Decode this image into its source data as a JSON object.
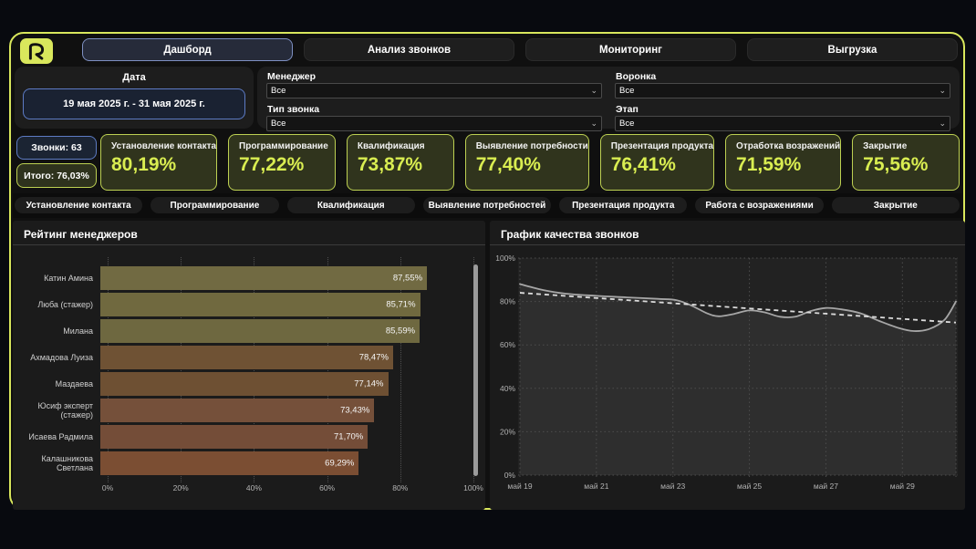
{
  "header": {
    "logo_icon": "r-monogram-icon",
    "tabs": [
      {
        "label": "Дашборд",
        "active": true
      },
      {
        "label": "Анализ звонков",
        "active": false
      },
      {
        "label": "Мониторинг",
        "active": false
      },
      {
        "label": "Выгрузка",
        "active": false
      }
    ]
  },
  "filters": {
    "date": {
      "label": "Дата",
      "value": "19 мая 2025 г. - 31 мая 2025 г."
    },
    "dropdowns": [
      {
        "label": "Менеджер",
        "value": "Все"
      },
      {
        "label": "Воронка",
        "value": "Все"
      },
      {
        "label": "Тип звонка",
        "value": "Все"
      },
      {
        "label": "Этап",
        "value": "Все"
      }
    ]
  },
  "summary": {
    "calls": "Звонки: 63",
    "total": "Итого: 76,03%"
  },
  "kpi_cards": [
    {
      "label": "Установление контакта",
      "value": "80,19%"
    },
    {
      "label": "Программирование",
      "value": "77,22%"
    },
    {
      "label": "Квалификация",
      "value": "73,87%"
    },
    {
      "label": "Выявление потребности",
      "value": "77,40%"
    },
    {
      "label": "Презентация продукта",
      "value": "76,41%"
    },
    {
      "label": "Отработка возражений",
      "value": "71,59%"
    },
    {
      "label": "Закрытие",
      "value": "75,56%"
    }
  ],
  "stage_buttons": [
    "Установление контакта",
    "Программирование",
    "Квалификация",
    "Выявление потребностей",
    "Презентация продукта",
    "Работа с возражениями",
    "Закрытие"
  ],
  "colors": {
    "accent": "#d9e75c",
    "kpi_border": "#bdd052",
    "kpi_value": "#d9ed51",
    "blue_border": "#5d7bc4",
    "active_tab_border": "#7e90c2"
  },
  "chart_data": [
    {
      "type": "bar",
      "orientation": "horizontal",
      "title": "Рейтинг менеджеров",
      "categories": [
        "Катин Амина",
        "Люба (стажер)",
        "Милана",
        "Ахмадова Луиза",
        "Маздаева",
        "Юсиф эксперт (стажер)",
        "Исаева Радмила",
        "Калашникова Светлана"
      ],
      "values": [
        87.55,
        85.71,
        85.59,
        78.47,
        77.14,
        73.43,
        71.7,
        69.29
      ],
      "value_labels": [
        "87,55%",
        "85,71%",
        "85,59%",
        "78,47%",
        "77,14%",
        "73,43%",
        "71,70%",
        "69,29%"
      ],
      "bar_colors": [
        "#716a42",
        "#70693f",
        "#6e6840",
        "#6f5234",
        "#6e5033",
        "#75503a",
        "#744d38",
        "#7b4e33"
      ],
      "xlim": [
        0,
        100
      ],
      "x_tick_values": [
        0,
        20,
        40,
        60,
        80,
        100
      ],
      "x_tick_labels": [
        "0%",
        "20%",
        "40%",
        "60%",
        "80%",
        "100%"
      ],
      "grid": "dotted-vertical"
    },
    {
      "type": "line",
      "title": "График качества звонков",
      "xlim": [
        19,
        30.4
      ],
      "ylim": [
        0,
        100
      ],
      "x_tick_values": [
        19,
        21,
        23,
        25,
        27,
        29
      ],
      "x_tick_labels": [
        "май 19",
        "май 21",
        "май 23",
        "май 25",
        "май 27",
        "май 29"
      ],
      "y_tick_values": [
        0,
        20,
        40,
        60,
        80,
        100
      ],
      "y_tick_labels": [
        "0%",
        "20%",
        "40%",
        "60%",
        "80%",
        "100%"
      ],
      "grid": "dotted",
      "series": [
        {
          "name": "Качество звонков",
          "style": "solid",
          "area": true,
          "color": "#a6a6a6",
          "fill": "#2e2e2e",
          "points": [
            [
              19,
              88
            ],
            [
              19.6,
              85.3
            ],
            [
              20.2,
              83.6
            ],
            [
              21,
              82.6
            ],
            [
              21.8,
              81.9
            ],
            [
              22.6,
              81.2
            ],
            [
              23.1,
              80.6
            ],
            [
              23.5,
              78
            ],
            [
              23.9,
              74.5
            ],
            [
              24.2,
              73.2
            ],
            [
              24.6,
              74.3
            ],
            [
              25,
              75.9
            ],
            [
              25.4,
              75
            ],
            [
              25.8,
              73
            ],
            [
              26.2,
              73
            ],
            [
              26.6,
              75.6
            ],
            [
              27,
              77
            ],
            [
              27.4,
              76.4
            ],
            [
              27.9,
              74.6
            ],
            [
              28.4,
              71
            ],
            [
              28.9,
              67.8
            ],
            [
              29.3,
              66.4
            ],
            [
              29.7,
              67.3
            ],
            [
              30.1,
              71.5
            ],
            [
              30.4,
              80
            ]
          ]
        },
        {
          "name": "Тренд",
          "style": "dashed",
          "color": "#dcdcdc",
          "points": [
            [
              19,
              84
            ],
            [
              30.4,
              70.3
            ]
          ]
        }
      ]
    }
  ]
}
